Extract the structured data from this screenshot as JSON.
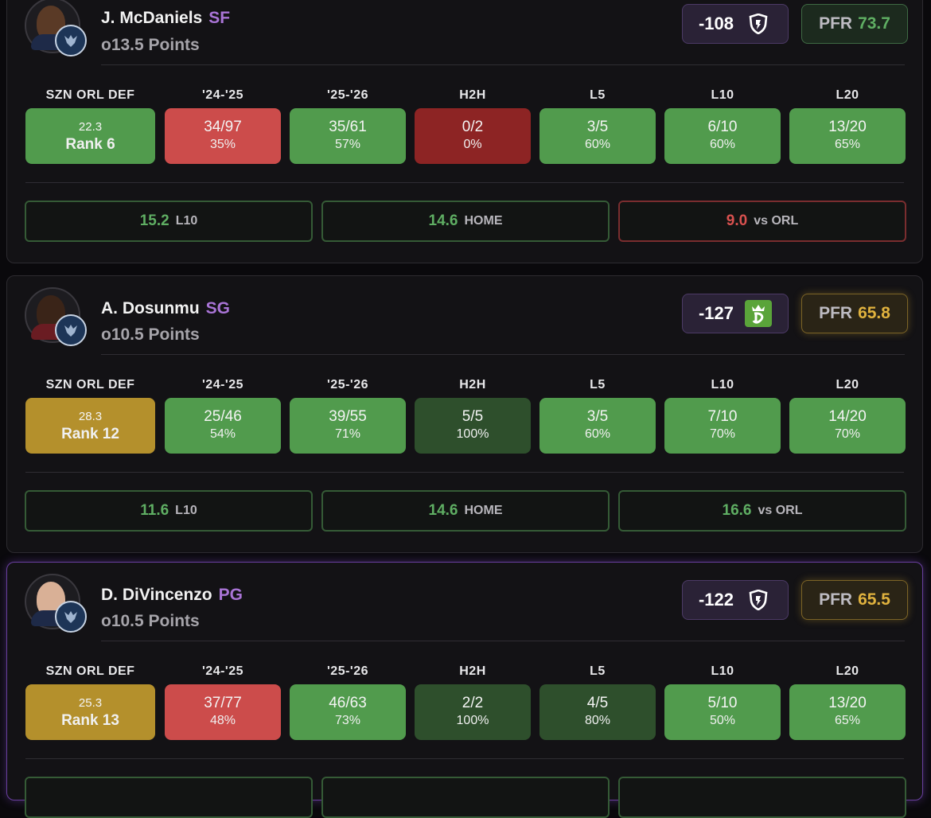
{
  "players": [
    {
      "name": "J. McDaniels",
      "position": "SF",
      "prop": "o13.5 Points",
      "odds": "-108",
      "book_icon": "fanduel-shield-icon",
      "pfr_label": "PFR",
      "pfr_score": "73.7",
      "pfr_color": "green",
      "columns": [
        "SZN ORL DEF",
        "'24-'25",
        "'25-'26",
        "H2H",
        "L5",
        "L10",
        "L20"
      ],
      "cells": [
        {
          "top": "22.3",
          "bot": "Rank 6",
          "color": "green"
        },
        {
          "top": "34/97",
          "bot": "35%",
          "color": "red"
        },
        {
          "top": "35/61",
          "bot": "57%",
          "color": "green"
        },
        {
          "top": "0/2",
          "bot": "0%",
          "color": "dkred"
        },
        {
          "top": "3/5",
          "bot": "60%",
          "color": "green"
        },
        {
          "top": "6/10",
          "bot": "60%",
          "color": "green"
        },
        {
          "top": "13/20",
          "bot": "65%",
          "color": "green"
        }
      ],
      "stats": [
        {
          "value": "15.2",
          "label": "L10",
          "color": "g"
        },
        {
          "value": "14.6",
          "label": "HOME",
          "color": "g"
        },
        {
          "value": "9.0",
          "label": "vs ORL",
          "color": "r"
        }
      ]
    },
    {
      "name": "A. Dosunmu",
      "position": "SG",
      "prop": "o10.5 Points",
      "odds": "-127",
      "book_icon": "draftkings-crown-icon",
      "pfr_label": "PFR",
      "pfr_score": "65.8",
      "pfr_color": "gold",
      "columns": [
        "SZN ORL DEF",
        "'24-'25",
        "'25-'26",
        "H2H",
        "L5",
        "L10",
        "L20"
      ],
      "cells": [
        {
          "top": "28.3",
          "bot": "Rank 12",
          "color": "gold"
        },
        {
          "top": "25/46",
          "bot": "54%",
          "color": "green"
        },
        {
          "top": "39/55",
          "bot": "71%",
          "color": "green"
        },
        {
          "top": "5/5",
          "bot": "100%",
          "color": "dkgreen"
        },
        {
          "top": "3/5",
          "bot": "60%",
          "color": "green"
        },
        {
          "top": "7/10",
          "bot": "70%",
          "color": "green"
        },
        {
          "top": "14/20",
          "bot": "70%",
          "color": "green"
        }
      ],
      "stats": [
        {
          "value": "11.6",
          "label": "L10",
          "color": "g"
        },
        {
          "value": "14.6",
          "label": "HOME",
          "color": "g"
        },
        {
          "value": "16.6",
          "label": "vs ORL",
          "color": "g"
        }
      ]
    },
    {
      "name": "D. DiVincenzo",
      "position": "PG",
      "prop": "o10.5 Points",
      "odds": "-122",
      "book_icon": "fanduel-shield-icon",
      "pfr_label": "PFR",
      "pfr_score": "65.5",
      "pfr_color": "gold",
      "columns": [
        "SZN ORL DEF",
        "'24-'25",
        "'25-'26",
        "H2H",
        "L5",
        "L10",
        "L20"
      ],
      "cells": [
        {
          "top": "25.3",
          "bot": "Rank 13",
          "color": "gold"
        },
        {
          "top": "37/77",
          "bot": "48%",
          "color": "red"
        },
        {
          "top": "46/63",
          "bot": "73%",
          "color": "green"
        },
        {
          "top": "2/2",
          "bot": "100%",
          "color": "dkgreen"
        },
        {
          "top": "4/5",
          "bot": "80%",
          "color": "dkgreen"
        },
        {
          "top": "5/10",
          "bot": "50%",
          "color": "green"
        },
        {
          "top": "13/20",
          "bot": "65%",
          "color": "green"
        }
      ],
      "stats": []
    }
  ]
}
